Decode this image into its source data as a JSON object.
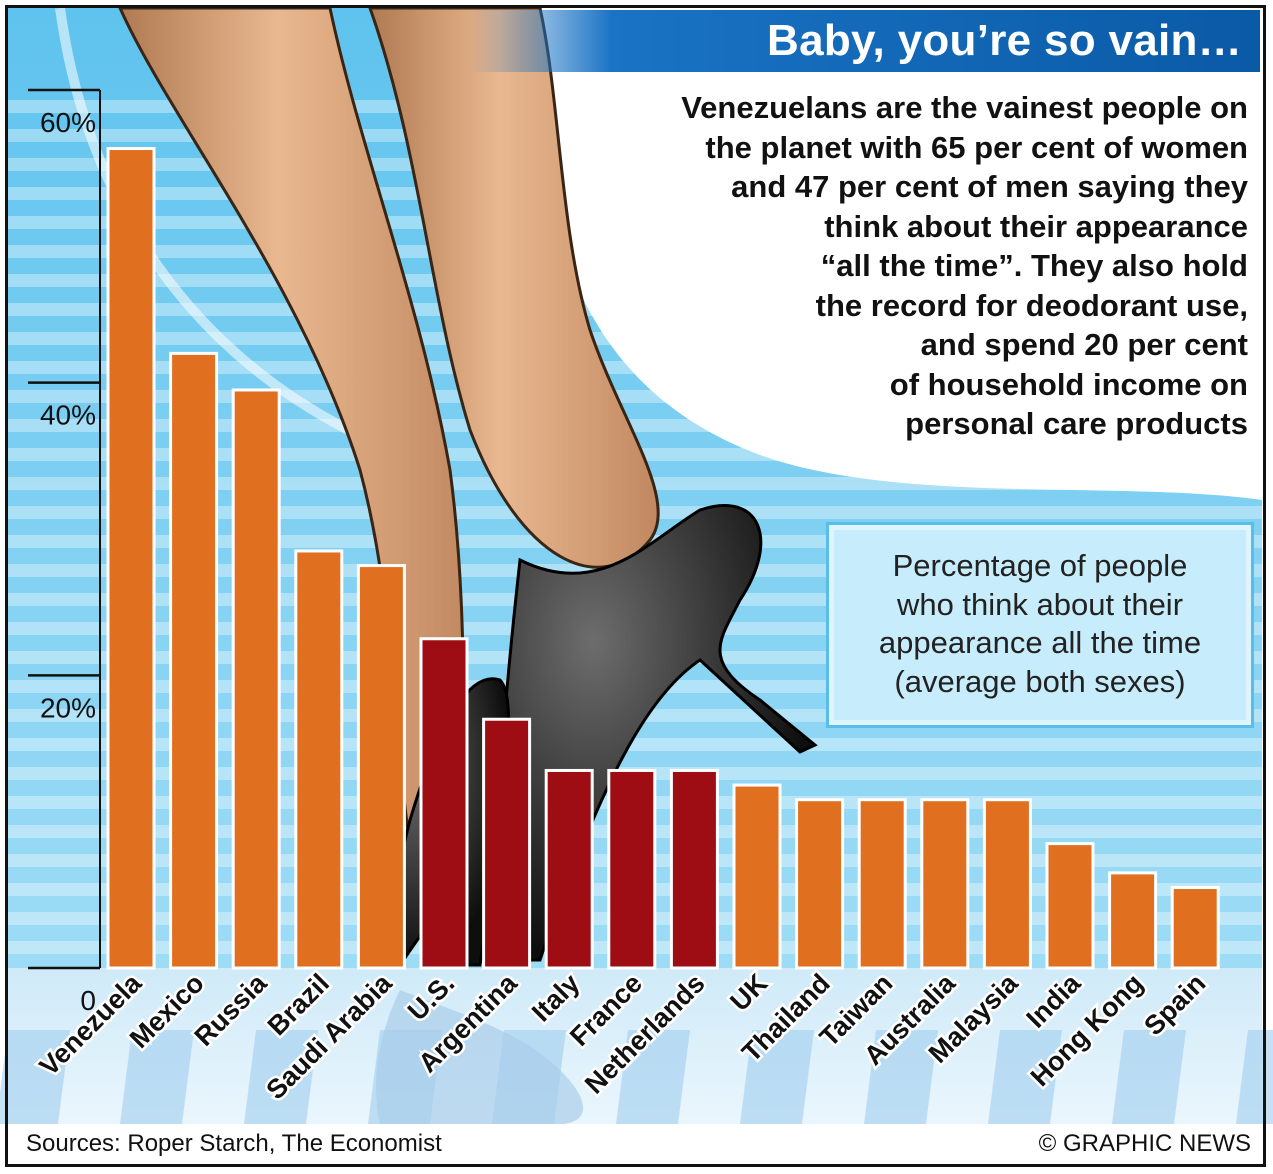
{
  "title": "Baby, you’re so vain…",
  "intro_lines": [
    "Venezuelans are the vainest people on",
    "the planet with 65 per cent of women",
    "and 47 per cent of men saying they",
    "think about their appearance",
    "“all the time”. They also hold",
    "the record for deodorant use,",
    "and spend 20 per cent",
    "of household income on",
    "personal care products"
  ],
  "legend_lines": [
    "Percentage of people",
    "who think about their",
    "appearance all the time",
    "(average both sexes)"
  ],
  "source": "Sources: Roper Starch, The Economist",
  "credit": "© GRAPHIC NEWS",
  "colors": {
    "bar_orange": "#e06f1f",
    "bar_dark_red": "#9e0c14",
    "sky_blue": "#5ec3ee",
    "title_blue": "#0a5aa6"
  },
  "chart_data": {
    "type": "bar",
    "categories": [
      "Venezuela",
      "Mexico",
      "Russia",
      "Brazil",
      "Saudi Arabia",
      "U.S.",
      "Argentina",
      "Italy",
      "France",
      "Netherlands",
      "UK",
      "Thailand",
      "Taiwan",
      "Australia",
      "Malaysia",
      "India",
      "Hong Kong",
      "Spain"
    ],
    "values": [
      56,
      42,
      39.5,
      28.5,
      27.5,
      22.5,
      17,
      13.5,
      13.5,
      13.5,
      12.5,
      11.5,
      11.5,
      11.5,
      11.5,
      8.5,
      6.5,
      5.5
    ],
    "ylim": [
      0,
      60
    ],
    "yticks": [
      0,
      20,
      40,
      60
    ],
    "ytick_labels": [
      "0",
      "20%",
      "40%",
      "60%"
    ],
    "grid": false,
    "title": "",
    "xlabel": "",
    "ylabel": ""
  }
}
